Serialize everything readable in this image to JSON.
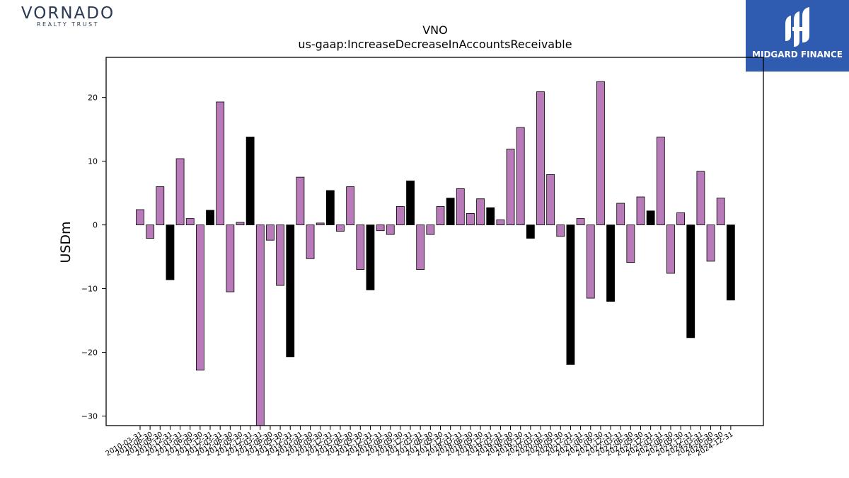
{
  "branding": {
    "left_logo": {
      "name": "VORNADO",
      "tagline": "REALTY TRUST",
      "color": "#2a3a54"
    },
    "right_logo": {
      "name": "MIDGARD FINANCE",
      "background": "#2f5bb0",
      "color": "#ffffff"
    }
  },
  "chart_data": {
    "type": "bar",
    "title": "VNO",
    "subtitle": "us-gaap:IncreaseDecreaseInAccountsReceivable",
    "xlabel": "",
    "ylabel": "USDm",
    "ylim": [
      -31.5,
      26.3
    ],
    "yticks": [
      20,
      10,
      0,
      -10,
      -20,
      -30
    ],
    "ytick_labels": [
      "20",
      "10",
      "0",
      "−10",
      "−20",
      "−30"
    ],
    "grid": false,
    "colors": {
      "quarterly": "#b87ab8",
      "annual": "#000000",
      "edge": "#000000"
    },
    "categories": [
      "2010-03-31",
      "2010-06-30",
      "2010-09-30",
      "2010-12-31",
      "2011-03-31",
      "2011-06-30",
      "2011-09-30",
      "2011-12-31",
      "2012-03-31",
      "2012-06-30",
      "2012-09-30",
      "2012-12-31",
      "2013-03-31",
      "2013-06-30",
      "2013-09-30",
      "2013-12-31",
      "2014-03-31",
      "2014-06-30",
      "2014-09-30",
      "2014-12-31",
      "2015-03-31",
      "2015-06-30",
      "2015-09-30",
      "2015-12-31",
      "2016-03-31",
      "2016-06-30",
      "2016-09-30",
      "2016-12-31",
      "2017-03-31",
      "2017-06-30",
      "2017-09-30",
      "2017-12-31",
      "2018-03-31",
      "2018-06-30",
      "2018-09-30",
      "2018-12-31",
      "2019-03-31",
      "2019-06-30",
      "2019-09-30",
      "2019-12-31",
      "2020-03-31",
      "2020-06-30",
      "2020-09-30",
      "2020-12-31",
      "2021-03-31",
      "2021-06-30",
      "2021-09-30",
      "2021-12-31",
      "2022-03-31",
      "2022-06-30",
      "2022-09-30",
      "2022-12-31",
      "2023-03-31",
      "2023-06-30",
      "2023-09-30",
      "2023-12-31",
      "2024-03-31",
      "2024-06-30",
      "2024-09-30",
      "2024-12-31"
    ],
    "values": [
      2.4,
      -2.1,
      6.0,
      -8.6,
      10.4,
      1.0,
      -22.8,
      2.3,
      19.3,
      -10.5,
      0.4,
      13.8,
      -31.5,
      -2.4,
      -9.5,
      -20.7,
      7.5,
      -5.3,
      0.3,
      5.4,
      -1.0,
      6.0,
      -7.0,
      -10.2,
      -0.9,
      -1.5,
      2.9,
      6.9,
      -7.0,
      -1.5,
      2.9,
      4.2,
      5.7,
      1.8,
      4.1,
      2.7,
      0.8,
      11.9,
      15.3,
      -2.1,
      20.9,
      7.9,
      -1.8,
      -21.9,
      1.0,
      -11.5,
      22.5,
      -12.0,
      3.4,
      -5.9,
      4.4,
      2.2,
      13.8,
      -7.6,
      1.9,
      -17.7,
      8.4,
      -5.7,
      4.2,
      -11.8
    ],
    "annual_flags": [
      0,
      0,
      0,
      1,
      0,
      0,
      0,
      1,
      0,
      0,
      0,
      1,
      0,
      0,
      0,
      1,
      0,
      0,
      0,
      1,
      0,
      0,
      0,
      1,
      0,
      0,
      0,
      1,
      0,
      0,
      0,
      1,
      0,
      0,
      0,
      1,
      0,
      0,
      0,
      1,
      0,
      0,
      0,
      1,
      0,
      0,
      0,
      1,
      0,
      0,
      0,
      1,
      0,
      0,
      0,
      1,
      0,
      0,
      0,
      1
    ]
  }
}
